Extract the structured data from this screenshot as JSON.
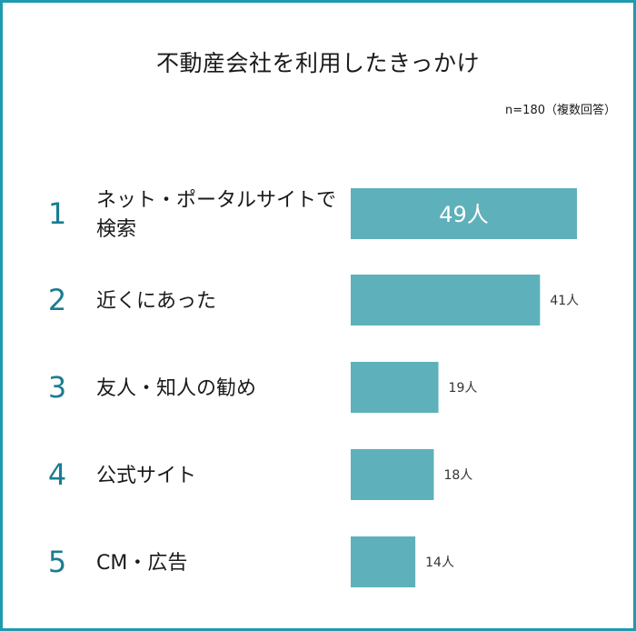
{
  "chart_data": {
    "type": "bar",
    "orientation": "horizontal",
    "title": "不動産会社を利用したきっかけ",
    "note": "n=180（複数回答）",
    "unit": "人",
    "ranks": [
      "1",
      "2",
      "3",
      "4",
      "5"
    ],
    "categories": [
      [
        "ネット・ポータルサイトで",
        "検索"
      ],
      [
        "近くにあった"
      ],
      [
        "友人・知人の勧め"
      ],
      [
        "公式サイト"
      ],
      [
        "CM・広告"
      ]
    ],
    "values": [
      49,
      41,
      19,
      18,
      14
    ],
    "value_labels": [
      "49人",
      "41人",
      "19人",
      "18人",
      "14人"
    ],
    "xlim": [
      0,
      49
    ],
    "colors": {
      "bar": "#5eb1ba",
      "rank": "#1a7d90",
      "frame": "#1f9aae"
    }
  }
}
